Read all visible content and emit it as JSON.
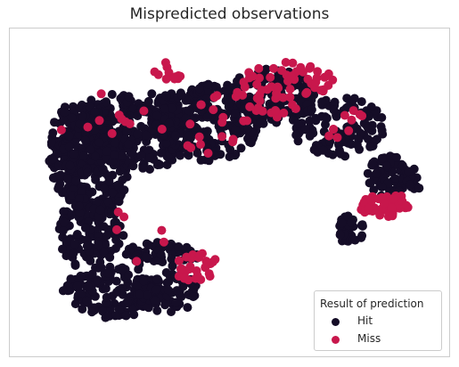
{
  "chart_data": {
    "type": "scatter",
    "title": "Mispredicted observations",
    "xlabel": "",
    "ylabel": "",
    "grid": false,
    "axis_ticks": false,
    "legend": {
      "title": "Result of prediction",
      "placement": "bottom-right",
      "entries": [
        {
          "label": "Hit",
          "color": "#150d27"
        },
        {
          "label": "Miss",
          "color": "#c8174c"
        }
      ]
    },
    "xlim": [
      0,
      10
    ],
    "ylim": [
      0,
      10
    ],
    "series": [
      {
        "name": "Hit",
        "color": "#150d27",
        "regions": [
          {
            "cx": 1.2,
            "cy": 6.3,
            "rx": 0.5,
            "ry": 1.5,
            "n": 140
          },
          {
            "cx": 1.8,
            "cy": 6.0,
            "rx": 0.8,
            "ry": 2.0,
            "n": 220
          },
          {
            "cx": 2.8,
            "cy": 7.0,
            "rx": 1.4,
            "ry": 1.3,
            "n": 260
          },
          {
            "cx": 4.5,
            "cy": 7.3,
            "rx": 1.3,
            "ry": 1.3,
            "n": 220
          },
          {
            "cx": 6.0,
            "cy": 8.1,
            "rx": 1.1,
            "ry": 0.9,
            "n": 140
          },
          {
            "cx": 7.6,
            "cy": 7.1,
            "rx": 1.1,
            "ry": 1.0,
            "n": 120
          },
          {
            "cx": 8.8,
            "cy": 5.5,
            "rx": 0.5,
            "ry": 0.7,
            "n": 70
          },
          {
            "cx": 1.7,
            "cy": 3.7,
            "rx": 0.8,
            "ry": 1.2,
            "n": 140
          },
          {
            "cx": 2.2,
            "cy": 1.8,
            "rx": 1.2,
            "ry": 0.85,
            "n": 150
          },
          {
            "cx": 3.5,
            "cy": 1.8,
            "rx": 0.8,
            "ry": 0.7,
            "n": 80
          },
          {
            "cx": 3.4,
            "cy": 3.0,
            "rx": 0.9,
            "ry": 0.4,
            "n": 60
          },
          {
            "cx": 7.9,
            "cy": 3.8,
            "rx": 0.3,
            "ry": 0.5,
            "n": 35
          },
          {
            "cx": 9.4,
            "cy": 5.4,
            "rx": 0.3,
            "ry": 0.4,
            "n": 20
          }
        ]
      },
      {
        "name": "Miss",
        "color": "#c8174c",
        "regions": [
          {
            "cx": 3.6,
            "cy": 8.9,
            "rx": 0.4,
            "ry": 0.3,
            "n": 12
          },
          {
            "cx": 6.4,
            "cy": 8.6,
            "rx": 1.1,
            "ry": 0.6,
            "n": 50
          },
          {
            "cx": 5.5,
            "cy": 7.8,
            "rx": 1.2,
            "ry": 0.5,
            "n": 25
          },
          {
            "cx": 8.7,
            "cy": 4.6,
            "rx": 0.6,
            "ry": 0.4,
            "n": 45
          },
          {
            "cx": 4.2,
            "cy": 2.6,
            "rx": 0.6,
            "ry": 0.45,
            "n": 28
          },
          {
            "cx": 2.0,
            "cy": 7.2,
            "rx": 1.4,
            "ry": 1.0,
            "n": 10
          },
          {
            "cx": 4.2,
            "cy": 7.0,
            "rx": 1.0,
            "ry": 0.8,
            "n": 12
          },
          {
            "cx": 7.7,
            "cy": 7.2,
            "rx": 0.8,
            "ry": 0.6,
            "n": 10
          },
          {
            "cx": 2.5,
            "cy": 3.5,
            "rx": 1.0,
            "ry": 1.0,
            "n": 6
          }
        ]
      }
    ]
  }
}
